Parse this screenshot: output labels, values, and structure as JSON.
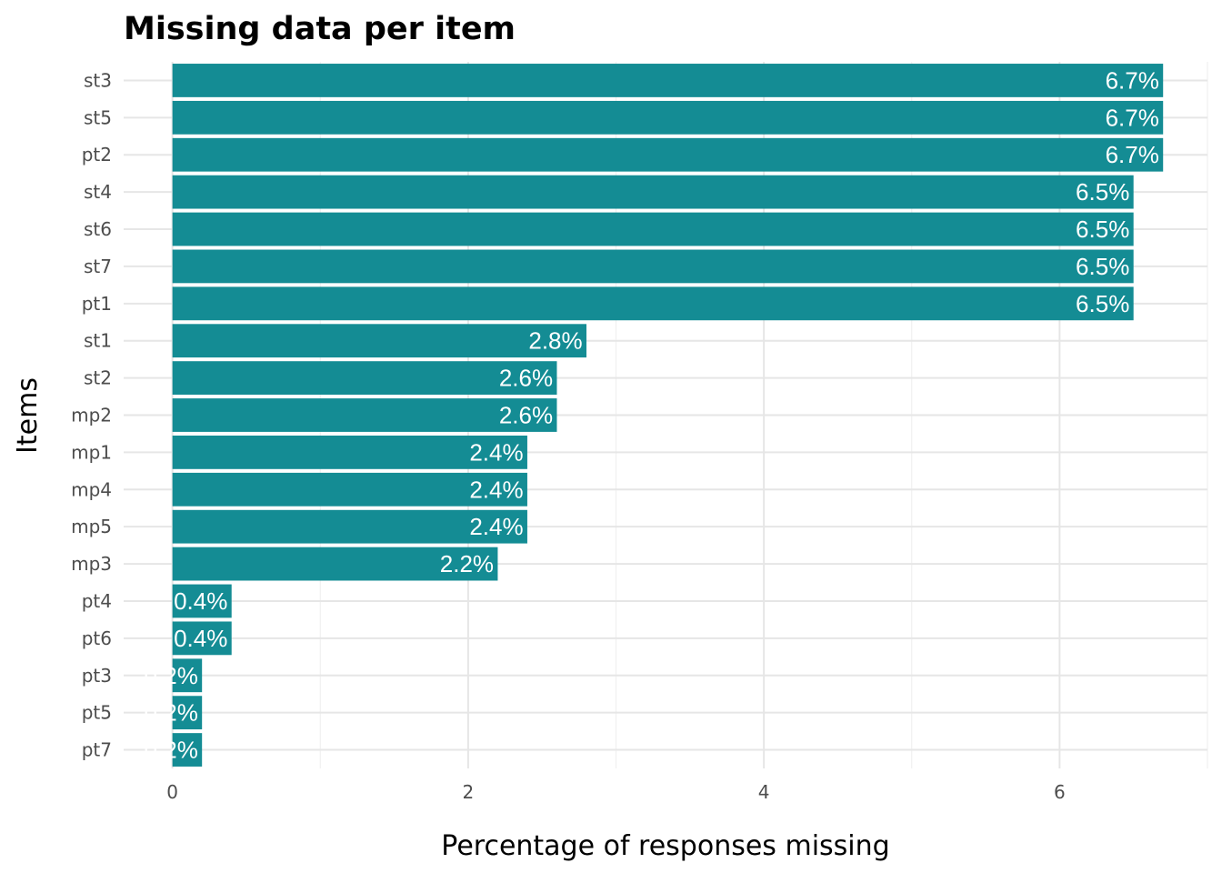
{
  "chart_data": {
    "type": "bar",
    "orientation": "horizontal",
    "title": "Missing data per item",
    "xlabel": "Percentage of responses missing",
    "ylabel": "Items",
    "categories": [
      "st3",
      "st5",
      "pt2",
      "st4",
      "st6",
      "st7",
      "pt1",
      "st1",
      "st2",
      "mp2",
      "mp1",
      "mp4",
      "mp5",
      "mp3",
      "pt4",
      "pt6",
      "pt3",
      "pt5",
      "pt7"
    ],
    "values": [
      6.7,
      6.7,
      6.7,
      6.5,
      6.5,
      6.5,
      6.5,
      2.8,
      2.6,
      2.6,
      2.4,
      2.4,
      2.4,
      2.2,
      0.4,
      0.4,
      0.2,
      0.2,
      0.2
    ],
    "labels": [
      "6.7%",
      "6.7%",
      "6.7%",
      "6.5%",
      "6.5%",
      "6.5%",
      "6.5%",
      "2.8%",
      "2.6%",
      "2.6%",
      "2.4%",
      "2.4%",
      "2.4%",
      "2.2%",
      "0.4%",
      "0.4%",
      "0.2%",
      "0.2%",
      "0.2%"
    ],
    "xticks": [
      0,
      2,
      4,
      6
    ],
    "xlim": [
      -0.33,
      7
    ],
    "grid": true,
    "bar_color": "#148C94"
  }
}
